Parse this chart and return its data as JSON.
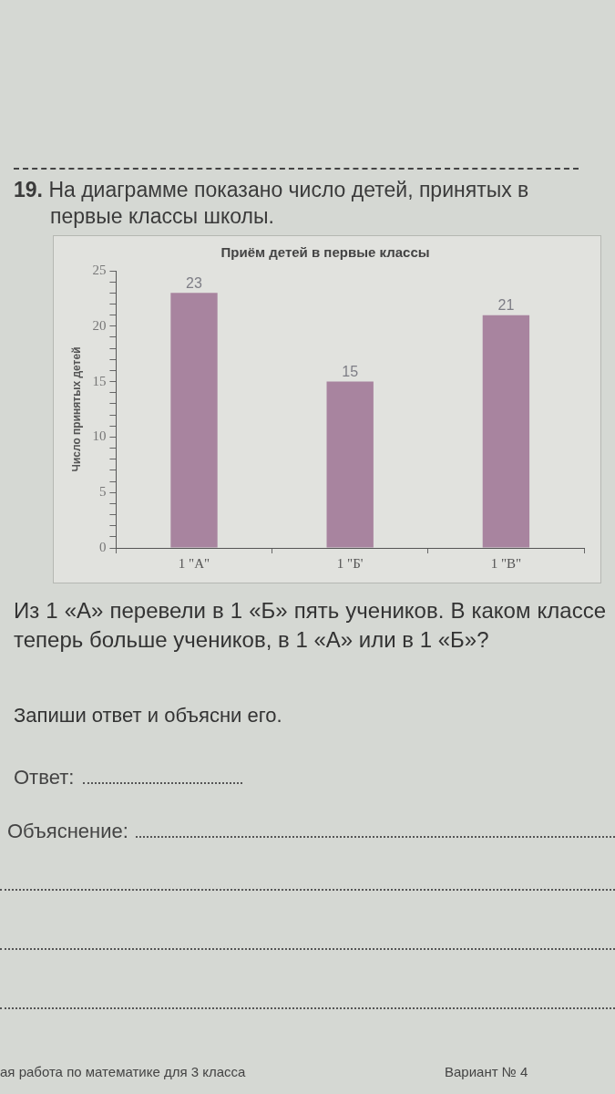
{
  "chart_data": {
    "type": "bar",
    "title": "Приём детей в первые классы",
    "ylabel": "Число принятых детей",
    "categories": [
      "1 \"А\"",
      "1 \"Б'",
      "1 \"В\""
    ],
    "values": [
      23,
      15,
      21
    ],
    "color": "#a8849f",
    "data_labels": true,
    "ylim": [
      0,
      25
    ],
    "yticks": [
      0,
      {
        "value": 1,
        "label": null
      },
      {
        "value": 2,
        "label": null
      },
      {
        "value": 3,
        "label": null
      },
      {
        "value": 4,
        "label": null
      },
      5,
      {
        "value": 6,
        "label": null
      },
      {
        "value": 7,
        "label": null
      },
      {
        "value": 8,
        "label": null
      },
      {
        "value": 9,
        "label": null
      },
      10,
      {
        "value": 11,
        "label": null
      },
      {
        "value": 12,
        "label": null
      },
      {
        "value": 13,
        "label": null
      },
      {
        "value": 14,
        "label": null
      },
      15,
      {
        "value": 16,
        "label": null
      },
      {
        "value": 17,
        "label": null
      },
      {
        "value": 18,
        "label": null
      },
      {
        "value": 19,
        "label": null
      },
      20,
      {
        "value": 21,
        "label": null
      },
      {
        "value": 22,
        "label": null
      },
      {
        "value": 23,
        "label": null
      },
      {
        "value": 24,
        "label": null
      },
      25
    ],
    "annotations": [
      "19. На диаграмме показано число детей, принятых в первые классы школы.",
      "Из 1 «А» перевели в 1 «Б» пять учеников. В каком классе теперь больше учеников, в 1 «А» или в 1 «Б»?",
      "Запиши ответ и объясни его.",
      "Ответ:",
      "Объяснение:",
      "ая работа по математике для 3 класса",
      "Вариант № 4"
    ]
  }
}
